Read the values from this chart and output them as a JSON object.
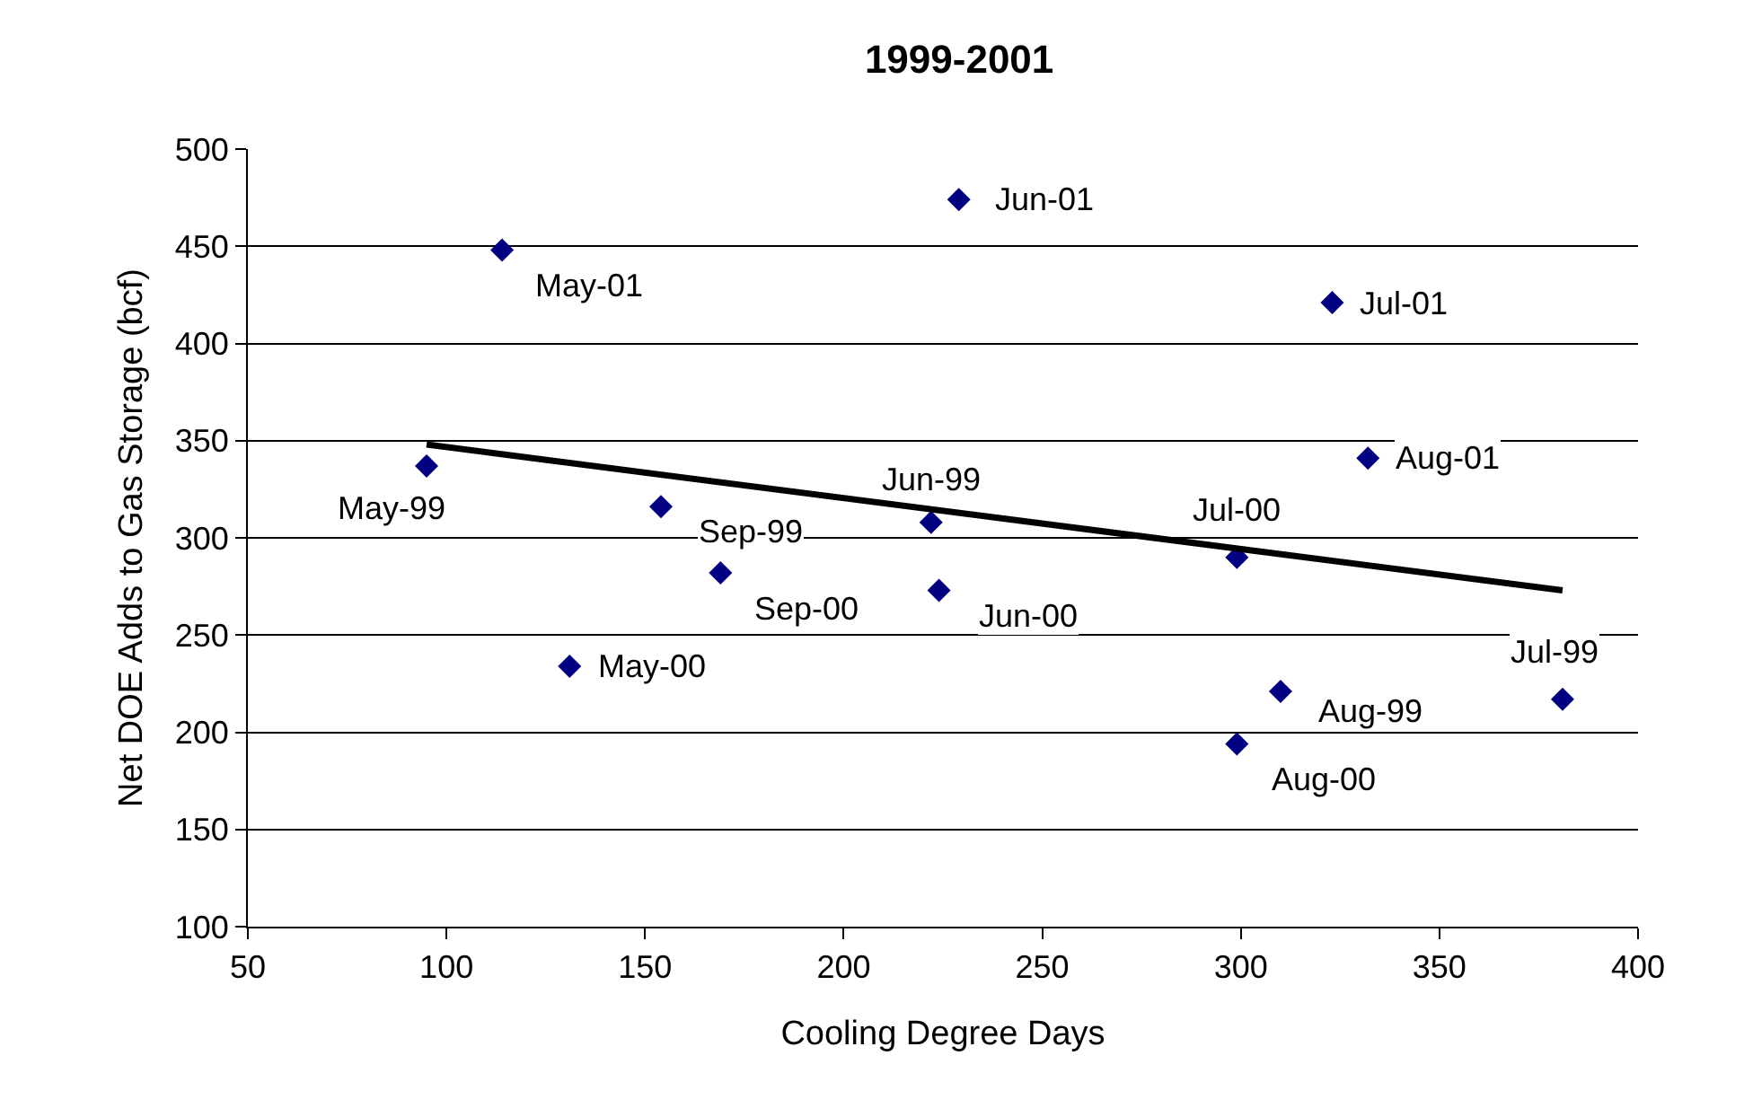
{
  "chart_data": {
    "type": "scatter",
    "title": "1999-2001",
    "xlabel": "Cooling Degree Days",
    "ylabel": "Net DOE Adds to Gas Storage (bcf)",
    "xlim": [
      50,
      400
    ],
    "xticks": [
      50,
      100,
      150,
      200,
      250,
      300,
      350,
      400
    ],
    "ylim": [
      100,
      500
    ],
    "yticks": [
      100,
      150,
      200,
      250,
      300,
      350,
      400,
      450,
      500
    ],
    "grid": "y",
    "marker": "diamond",
    "series": [
      {
        "color": "#000080",
        "x": [
          114,
          95,
          154,
          169,
          222,
          224,
          229,
          323,
          332,
          299,
          310,
          381,
          131,
          299
        ],
        "values": [
          448,
          337,
          316,
          282,
          308,
          273,
          474,
          421,
          341,
          290,
          221,
          217,
          234,
          194
        ]
      },
      {
        "type": "line",
        "marker": "none",
        "color": "#000000",
        "x": [
          95,
          381
        ],
        "values": [
          348,
          273
        ]
      }
    ],
    "annotations": [
      {
        "text": "May-01",
        "x": 114,
        "y": 448
      },
      {
        "text": "May-99",
        "x": 95,
        "y": 337
      },
      {
        "text": "Sep-99",
        "x": 154,
        "y": 316
      },
      {
        "text": "Sep-00",
        "x": 169,
        "y": 282
      },
      {
        "text": "Jun-99",
        "x": 222,
        "y": 308
      },
      {
        "text": "Jun-00",
        "x": 224,
        "y": 273
      },
      {
        "text": "Jun-01",
        "x": 229,
        "y": 474
      },
      {
        "text": "Jul-01",
        "x": 323,
        "y": 421
      },
      {
        "text": "Aug-01",
        "x": 332,
        "y": 341
      },
      {
        "text": "Jul-00",
        "x": 299,
        "y": 290
      },
      {
        "text": "Aug-99",
        "x": 310,
        "y": 221
      },
      {
        "text": "Jul-99",
        "x": 381,
        "y": 217
      },
      {
        "text": "May-00",
        "x": 131,
        "y": 234
      },
      {
        "text": "Aug-00",
        "x": 299,
        "y": 194
      }
    ]
  }
}
